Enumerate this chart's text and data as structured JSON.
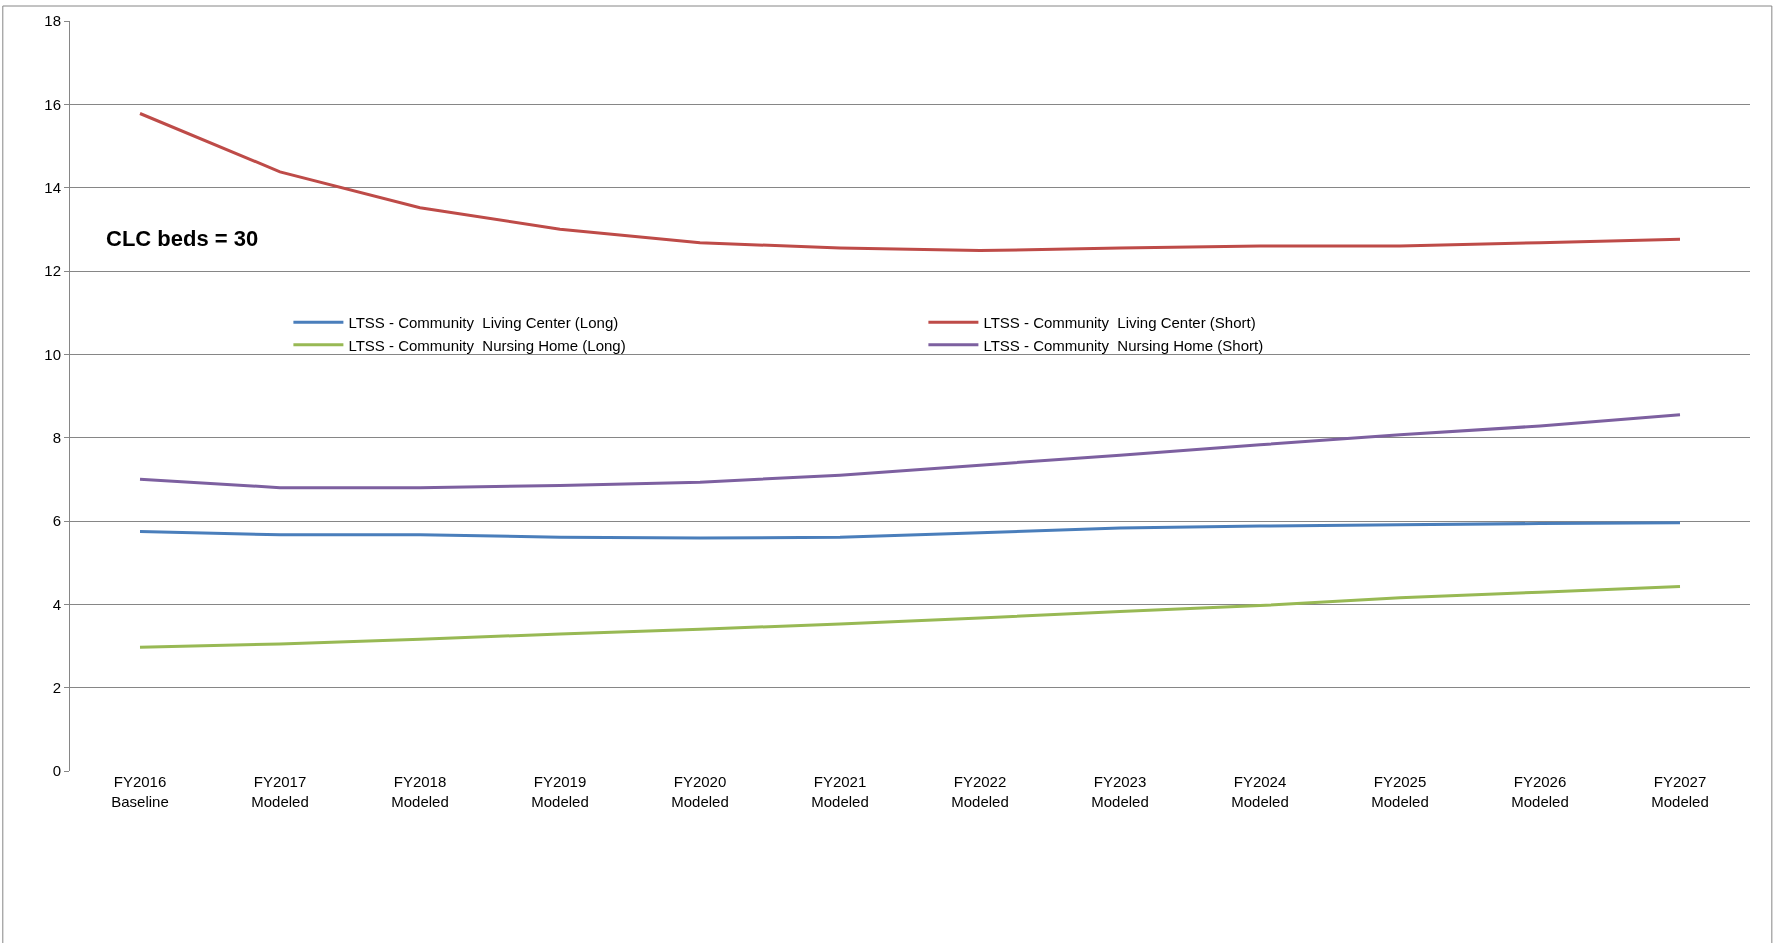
{
  "chart_data": {
    "type": "line",
    "categories": [
      "FY2016\nBaseline",
      "FY2017\nModeled",
      "FY2018\nModeled",
      "FY2019\nModeled",
      "FY2020\nModeled",
      "FY2021\nModeled",
      "FY2022\nModeled",
      "FY2023\nModeled",
      "FY2024\nModeled",
      "FY2025\nModeled",
      "FY2026\nModeled",
      "FY2027\nModeled"
    ],
    "series": [
      {
        "name": "LTSS - Community  Living Center (Long)",
        "color": "#4a7ebb",
        "values": [
          5.75,
          5.67,
          5.67,
          5.61,
          5.59,
          5.61,
          5.72,
          5.83,
          5.88,
          5.91,
          5.94,
          5.96
        ]
      },
      {
        "name": "LTSS - Community  Living Center (Short)",
        "color": "#be4b48",
        "values": [
          15.78,
          14.38,
          13.52,
          13.0,
          12.68,
          12.55,
          12.49,
          12.55,
          12.6,
          12.6,
          12.68,
          12.76
        ]
      },
      {
        "name": "LTSS - Community  Nursing Home (Long)",
        "color": "#98b954",
        "values": [
          2.97,
          3.05,
          3.16,
          3.29,
          3.4,
          3.53,
          3.67,
          3.83,
          3.97,
          4.16,
          4.29,
          4.43
        ]
      },
      {
        "name": "LTSS - Community  Nursing Home (Short)",
        "color": "#7d60a0",
        "values": [
          7.0,
          6.8,
          6.8,
          6.85,
          6.93,
          7.1,
          7.34,
          7.58,
          7.83,
          8.07,
          8.28,
          8.55
        ]
      }
    ],
    "ylim": [
      0,
      18
    ],
    "yticks": [
      0,
      2,
      4,
      6,
      8,
      10,
      12,
      14,
      16,
      18
    ],
    "grid": "y",
    "legend": "top left",
    "marker": "none",
    "line_style": "solid",
    "annotations": [
      "CLC beds = 30"
    ]
  }
}
